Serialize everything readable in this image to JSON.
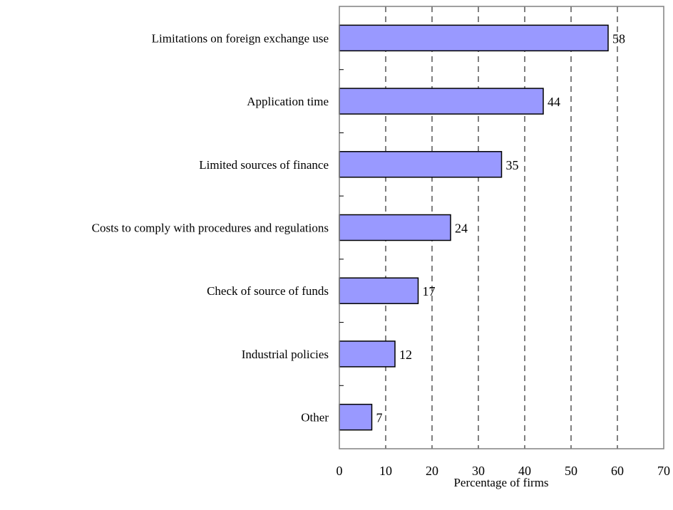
{
  "chart_data": {
    "type": "bar",
    "orientation": "horizontal",
    "title": "",
    "xlabel": "Percentage of firms",
    "ylabel": "",
    "categories": [
      "Limitations on foreign exchange use",
      "Application time",
      "Limited sources of finance",
      "Costs to comply with procedures and regulations",
      "Check of source of funds",
      "Industrial policies",
      "Other"
    ],
    "values": [
      58,
      44,
      35,
      24,
      17,
      12,
      7
    ],
    "data_labels": [
      "58",
      "44",
      "35",
      "24",
      "17",
      "12",
      "7"
    ],
    "xlim": [
      0,
      70
    ],
    "x_ticks": [
      0,
      10,
      20,
      30,
      40,
      50,
      60,
      70
    ],
    "x_tick_labels": [
      "0",
      "10",
      "20",
      "30",
      "40",
      "50",
      "60",
      "70"
    ],
    "grid": "vertical dashed",
    "legend": "none",
    "colors": {
      "bar_fill": "#9999ff",
      "bar_stroke": "#000000",
      "grid": "#000000",
      "frame": "#808080",
      "text": "#000000"
    }
  }
}
